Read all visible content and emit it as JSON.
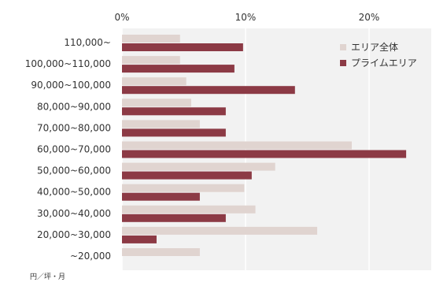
{
  "chart_data": {
    "type": "bar",
    "orientation": "horizontal",
    "categories": [
      "110,000~",
      "100,000~110,000",
      "90,000~100,000",
      "80,000~90,000",
      "70,000~80,000",
      "60,000~70,000",
      "50,000~60,000",
      "40,000~50,000",
      "30,000~40,000",
      "20,000~30,000",
      "~20,000"
    ],
    "series": [
      {
        "name": "エリア全体",
        "color": "#e0d4d0",
        "values": [
          4.7,
          4.7,
          5.2,
          5.6,
          6.3,
          18.6,
          12.4,
          9.9,
          10.8,
          15.8,
          6.3
        ]
      },
      {
        "name": "プライムエリア",
        "color": "#8c3a45",
        "values": [
          9.8,
          9.1,
          14.0,
          8.4,
          8.4,
          23.0,
          10.5,
          6.3,
          8.4,
          2.8,
          0
        ]
      }
    ],
    "x_ticks": [
      "0%",
      "10%",
      "20%"
    ],
    "x_tick_values": [
      0,
      10,
      20
    ],
    "xlim": [
      0,
      25
    ],
    "unit_label": "円／坪・月",
    "grid": "vertical",
    "legend_position": "top-right"
  }
}
